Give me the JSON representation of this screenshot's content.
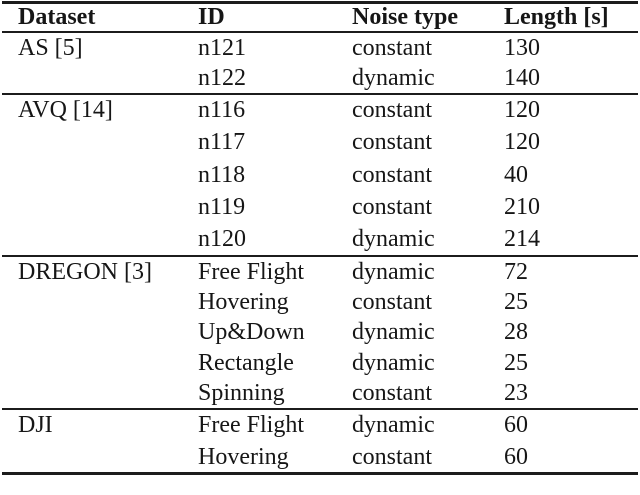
{
  "table": {
    "columns": [
      "Dataset",
      "ID",
      "Noise type",
      "Length [s]"
    ],
    "groups": [
      {
        "dataset": "AS [5]",
        "rows": [
          {
            "id": "n121",
            "noise": "constant",
            "length": "130"
          },
          {
            "id": "n122",
            "noise": "dynamic",
            "length": "140"
          }
        ]
      },
      {
        "dataset": "AVQ [14]",
        "rows": [
          {
            "id": "n116",
            "noise": "constant",
            "length": "120"
          },
          {
            "id": "n117",
            "noise": "constant",
            "length": "120"
          },
          {
            "id": "n118",
            "noise": "constant",
            "length": "40"
          },
          {
            "id": "n119",
            "noise": "constant",
            "length": "210"
          },
          {
            "id": "n120",
            "noise": "dynamic",
            "length": "214"
          }
        ]
      },
      {
        "dataset": "DREGON [3]",
        "rows": [
          {
            "id": "Free Flight",
            "noise": "dynamic",
            "length": "72"
          },
          {
            "id": "Hovering",
            "noise": "constant",
            "length": "25"
          },
          {
            "id": "Up&Down",
            "noise": "dynamic",
            "length": "28"
          },
          {
            "id": "Rectangle",
            "noise": "dynamic",
            "length": "25"
          },
          {
            "id": "Spinning",
            "noise": "constant",
            "length": "23"
          }
        ]
      },
      {
        "dataset": "DJI",
        "rows": [
          {
            "id": "Free Flight",
            "noise": "dynamic",
            "length": "60"
          },
          {
            "id": "Hovering",
            "noise": "constant",
            "length": "60"
          }
        ]
      }
    ],
    "colors": {
      "text": "#161616",
      "rule": "#1c1c1c",
      "background": "#ffffff"
    }
  }
}
